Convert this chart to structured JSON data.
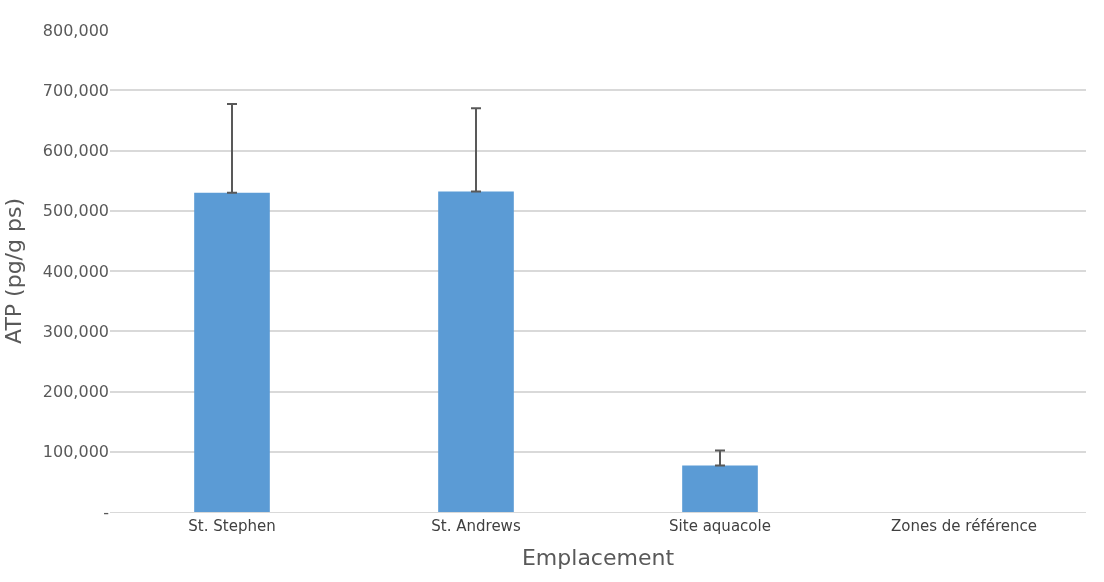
{
  "chart_data": {
    "type": "bar",
    "xlabel": "Emplacement",
    "ylabel": "ATP (pg/g ps)",
    "categories": [
      "St. Stephen",
      "St. Andrews",
      "Site aquacole",
      "Zones de référence"
    ],
    "values": [
      530000,
      532000,
      77000,
      null
    ],
    "errors": [
      [
        530000,
        677000
      ],
      [
        532000,
        670000
      ],
      [
        77000,
        102000
      ],
      null
    ],
    "color": "#5b9bd5",
    "ylim": [
      0,
      800000
    ],
    "yticks": [
      {
        "value": 0,
        "label": "-"
      },
      {
        "value": 100000,
        "label": "100,000"
      },
      {
        "value": 200000,
        "label": "200,000"
      },
      {
        "value": 300000,
        "label": "300,000"
      },
      {
        "value": 400000,
        "label": "400,000"
      },
      {
        "value": 500000,
        "label": "500,000"
      },
      {
        "value": 600000,
        "label": "600,000"
      },
      {
        "value": 700000,
        "label": "700,000"
      },
      {
        "value": 800000,
        "label": "800,000"
      }
    ],
    "grid": "y",
    "legend": false
  }
}
